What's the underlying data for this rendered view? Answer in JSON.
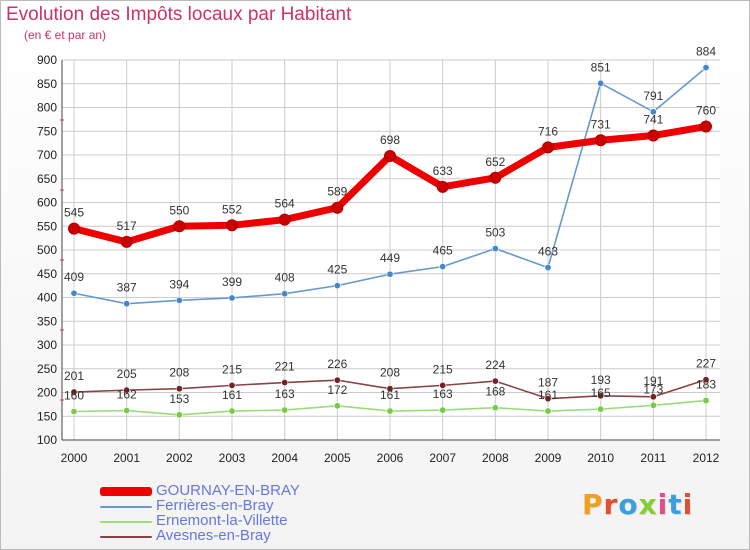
{
  "title": "Evolution des Impôts locaux par Habitant",
  "subtitle": "(en € et par an)",
  "logo_text": "Proxiti",
  "colors": {
    "title": "#cc3366",
    "grid": "#cccccc",
    "axis_text": "#222222",
    "legend_text": "#6677dd"
  },
  "chart_data": {
    "type": "line",
    "x": [
      "2000",
      "2001",
      "2002",
      "2003",
      "2004",
      "2005",
      "2006",
      "2007",
      "2008",
      "2009",
      "2010",
      "2011",
      "2012"
    ],
    "ylim": [
      100,
      900
    ],
    "yticks": [
      100,
      150,
      200,
      250,
      300,
      350,
      400,
      450,
      500,
      550,
      600,
      650,
      700,
      750,
      800,
      850,
      900
    ],
    "grid": true,
    "legend_position": "bottom-left",
    "series": [
      {
        "name": "GOURNAY-EN-BRAY",
        "color": "#ee0000",
        "marker": "#cc0000",
        "emphasis": true,
        "values": [
          545,
          517,
          550,
          552,
          564,
          589,
          698,
          633,
          652,
          716,
          731,
          741,
          760
        ]
      },
      {
        "name": "Ferrières-en-Bray",
        "color": "#6699cc",
        "marker": "#4488cc",
        "emphasis": false,
        "values": [
          409,
          387,
          394,
          399,
          408,
          425,
          449,
          465,
          503,
          463,
          851,
          791,
          884
        ]
      },
      {
        "name": "Ernemont-la-Villette",
        "color": "#99dd77",
        "marker": "#77cc44",
        "emphasis": false,
        "values": [
          160,
          162,
          153,
          161,
          163,
          172,
          161,
          163,
          168,
          161,
          165,
          173,
          183
        ]
      },
      {
        "name": "Avesnes-en-Bray",
        "color": "#884444",
        "marker": "#772222",
        "emphasis": false,
        "values": [
          201,
          205,
          208,
          215,
          221,
          226,
          208,
          215,
          224,
          187,
          193,
          191,
          227
        ]
      }
    ]
  }
}
